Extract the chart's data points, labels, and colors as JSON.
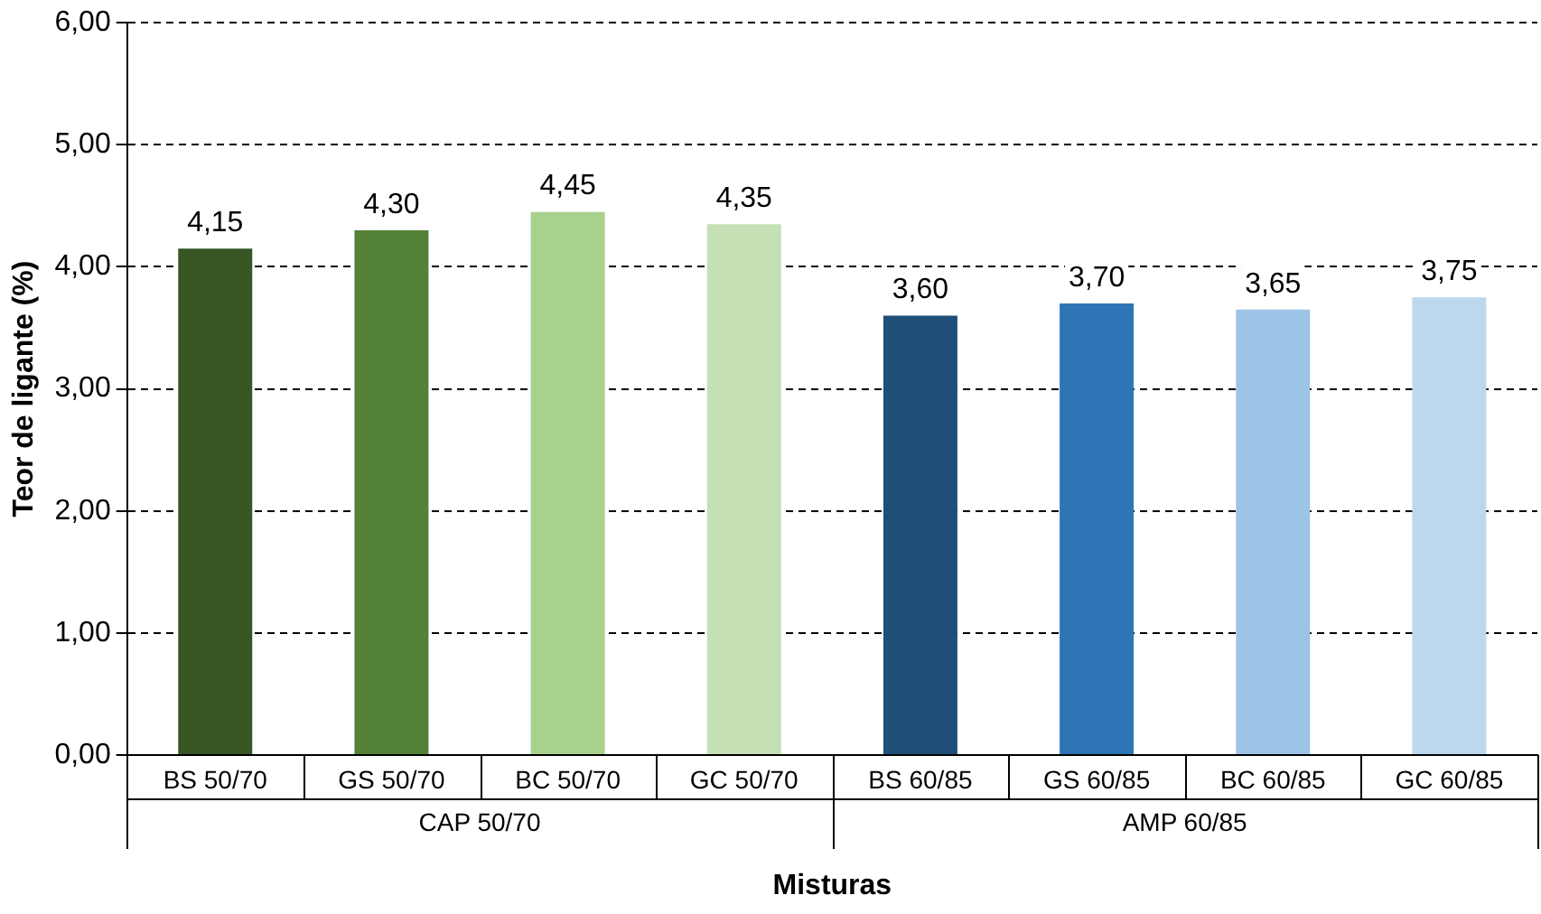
{
  "chart_data": {
    "type": "bar",
    "xlabel": "Misturas",
    "ylabel": "Teor de ligante (%)",
    "categories": [
      "BS 50/70",
      "GS 50/70",
      "BC 50/70",
      "GC 50/70",
      "BS 60/85",
      "GS 60/85",
      "BC 60/85",
      "GC 60/85"
    ],
    "values": [
      4.15,
      4.3,
      4.45,
      4.35,
      3.6,
      3.7,
      3.65,
      3.75
    ],
    "colors": [
      "#375623",
      "#538135",
      "#a9d18e",
      "#c5e0b4",
      "#1f4e79",
      "#2e75b6",
      "#9dc3e6",
      "#bdd7ee"
    ],
    "value_labels": [
      "4,15",
      "4,30",
      "4,45",
      "4,35",
      "3,60",
      "3,70",
      "3,65",
      "3,75"
    ],
    "ylim": [
      0,
      6
    ],
    "yticks": [
      {
        "value": 0,
        "label": "0,00"
      },
      {
        "value": 1,
        "label": "1,00"
      },
      {
        "value": 2,
        "label": "2,00"
      },
      {
        "value": 3,
        "label": "3,00"
      },
      {
        "value": 4,
        "label": "4,00"
      },
      {
        "value": 5,
        "label": "5,00"
      },
      {
        "value": 6,
        "label": "6,00"
      }
    ],
    "annotations": [
      "CAP 50/70",
      "AMP 60/85"
    ],
    "grid": "y",
    "legend": false
  }
}
